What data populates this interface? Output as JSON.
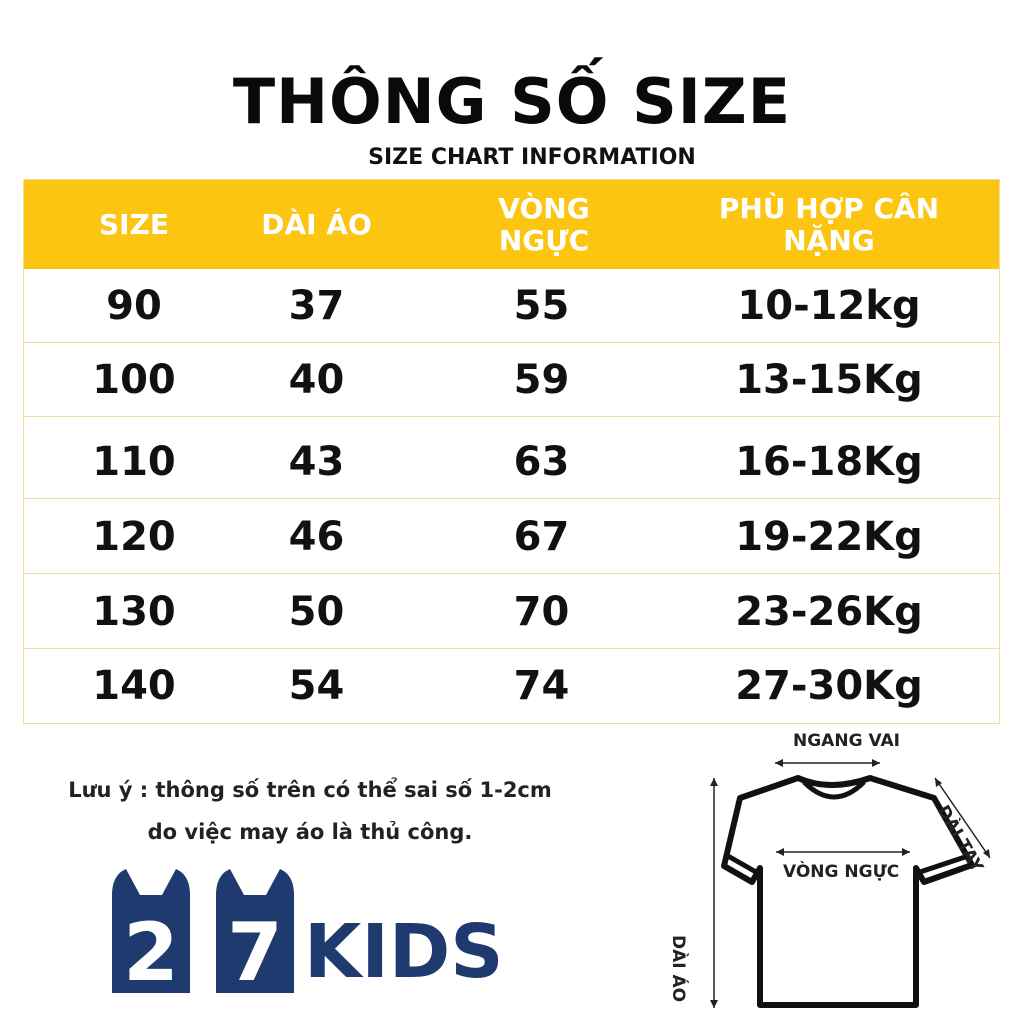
{
  "title": "THÔNG SỐ SIZE",
  "subtitle": "SIZE CHART INFORMATION",
  "table": {
    "headers": [
      "SIZE",
      "DÀI ÁO",
      "VÒNG NGỰC",
      "PHÙ HỢP CÂN NẶNG"
    ],
    "rows": [
      [
        "90",
        "37",
        "55",
        "10-12kg"
      ],
      [
        "100",
        "40",
        "59",
        "13-15Kg"
      ],
      [
        "110",
        "43",
        "63",
        "16-18Kg"
      ],
      [
        "120",
        "46",
        "67",
        "19-22Kg"
      ],
      [
        "130",
        "50",
        "70",
        "23-26Kg"
      ],
      [
        "140",
        "54",
        "74",
        "27-30Kg"
      ]
    ]
  },
  "note": {
    "line1": "Lưu ý : thông số trên có thể sai số 1-2cm",
    "line2": "do việc may áo là thủ công."
  },
  "logo": {
    "digit1": "2",
    "digit2": "7",
    "word": "KIDS",
    "color": "#1f3a6e"
  },
  "diagram": {
    "shoulder_label": "NGANG VAI",
    "sleeve_label": "DÀI TAY",
    "chest_label": "VÒNG NGỰC",
    "length_label": "DÀI ÁO"
  },
  "colors": {
    "header": "#fbc512",
    "border": "#f2dca0",
    "brand": "#1f3a6e"
  }
}
